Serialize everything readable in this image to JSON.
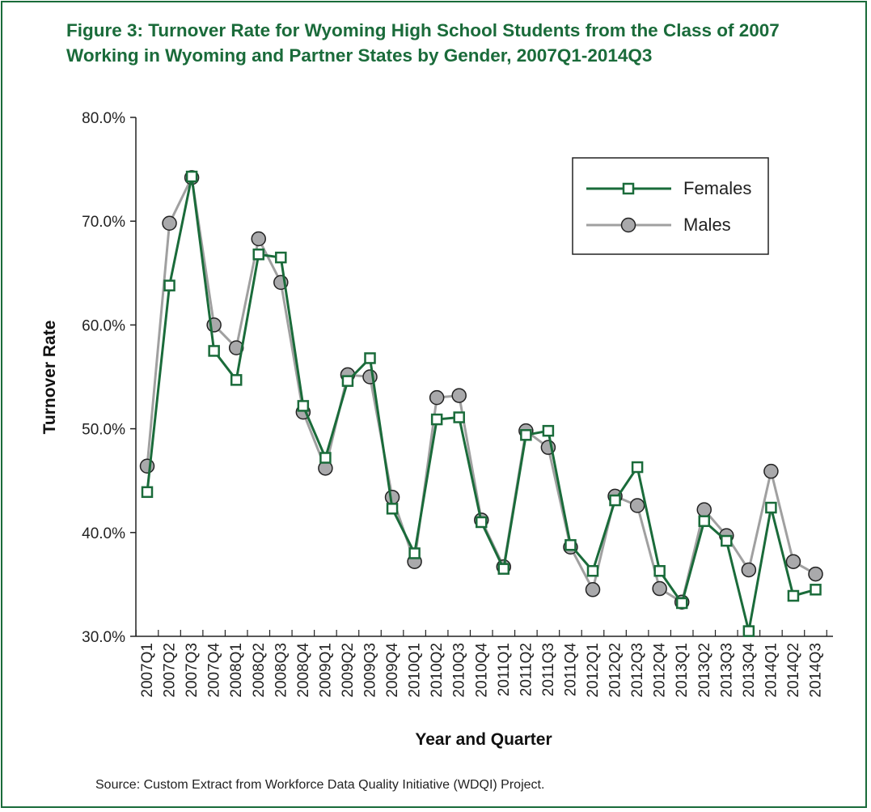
{
  "figure": {
    "title_line1": "Figure 3: Turnover Rate for Wyoming High School Students from the Class of 2007",
    "title_line2": "Working in Wyoming and Partner States by Gender, 2007Q1-2014Q3",
    "source": "Source: Custom Extract from Workforce Data Quality Initiative (WDQI) Project."
  },
  "colors": {
    "frame": "#1a6b3a",
    "females": "#1a6b3a",
    "males_line": "#a0a0a0",
    "males_marker": "#a9a9ab"
  },
  "chart_data": {
    "type": "line",
    "xlabel": "Year and Quarter",
    "ylabel": "Turnover Rate",
    "ylim": [
      30,
      80
    ],
    "yticks": [
      30,
      40,
      50,
      60,
      70,
      80
    ],
    "ytick_labels": [
      "30.0%",
      "40.0%",
      "50.0%",
      "60.0%",
      "70.0%",
      "80.0%"
    ],
    "grid": false,
    "legend": "top-right",
    "categories": [
      "2007Q1",
      "2007Q2",
      "2007Q3",
      "2007Q4",
      "2008Q1",
      "2008Q2",
      "2008Q3",
      "2008Q4",
      "2009Q1",
      "2009Q2",
      "2009Q3",
      "2009Q4",
      "2010Q1",
      "2010Q2",
      "2010Q3",
      "2010Q4",
      "2011Q1",
      "2011Q2",
      "2011Q3",
      "2011Q4",
      "2012Q1",
      "2012Q2",
      "2012Q3",
      "2012Q4",
      "2013Q1",
      "2013Q2",
      "2013Q3",
      "2013Q4",
      "2014Q1",
      "2014Q2",
      "2014Q3"
    ],
    "series": [
      {
        "name": "Females",
        "marker": "square",
        "values": [
          43.9,
          63.8,
          74.3,
          57.5,
          54.7,
          66.8,
          66.5,
          52.2,
          47.2,
          54.6,
          56.8,
          42.3,
          38.0,
          50.9,
          51.1,
          41.0,
          36.5,
          49.4,
          49.8,
          38.8,
          36.3,
          43.1,
          46.3,
          36.3,
          33.2,
          41.1,
          39.2,
          30.5,
          42.4,
          33.9,
          34.5
        ]
      },
      {
        "name": "Males",
        "marker": "circle",
        "values": [
          46.4,
          69.8,
          74.2,
          60.0,
          57.8,
          68.3,
          64.1,
          51.6,
          46.2,
          55.2,
          55.0,
          43.4,
          37.2,
          53.0,
          53.2,
          41.2,
          36.7,
          49.8,
          48.2,
          38.6,
          34.5,
          43.5,
          42.6,
          34.6,
          33.3,
          42.2,
          39.7,
          36.4,
          45.9,
          37.2,
          36.0
        ]
      }
    ]
  }
}
